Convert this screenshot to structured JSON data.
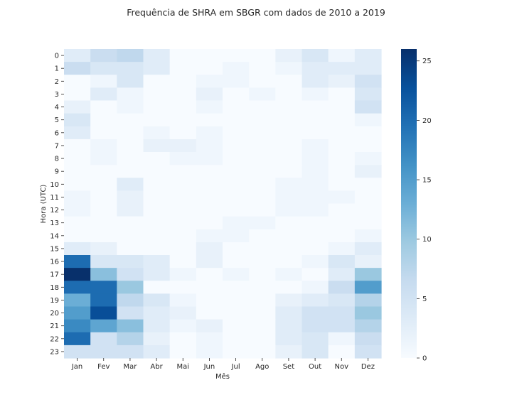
{
  "chart_data": {
    "type": "heatmap",
    "title": "Frequência de SHRA em SBGR com dados de 2010 a 2019",
    "xlabel": "Mês",
    "ylabel": "Hora (UTC)",
    "x_categories": [
      "Jan",
      "Fev",
      "Mar",
      "Abr",
      "Mai",
      "Jun",
      "Jul",
      "Ago",
      "Set",
      "Out",
      "Nov",
      "Dez"
    ],
    "y_categories": [
      "0",
      "1",
      "2",
      "3",
      "4",
      "5",
      "6",
      "7",
      "8",
      "9",
      "10",
      "11",
      "12",
      "13",
      "14",
      "15",
      "16",
      "17",
      "18",
      "19",
      "20",
      "21",
      "22",
      "23"
    ],
    "values": [
      [
        3,
        6,
        7,
        3,
        0,
        0,
        0,
        0,
        2,
        4,
        1,
        3
      ],
      [
        6,
        4,
        4,
        3,
        0,
        0,
        1,
        0,
        1,
        3,
        3,
        3
      ],
      [
        0,
        1,
        4,
        0,
        0,
        1,
        1,
        0,
        0,
        3,
        2,
        5
      ],
      [
        0,
        3,
        1,
        0,
        0,
        2,
        0,
        1,
        0,
        1,
        0,
        4
      ],
      [
        2,
        0,
        1,
        0,
        0,
        1,
        0,
        0,
        0,
        0,
        0,
        5
      ],
      [
        4,
        0,
        0,
        0,
        0,
        0,
        0,
        0,
        0,
        0,
        0,
        1
      ],
      [
        3,
        0,
        0,
        1,
        0,
        1,
        0,
        0,
        0,
        0,
        0,
        0
      ],
      [
        0,
        1,
        0,
        2,
        2,
        1,
        0,
        0,
        0,
        1,
        0,
        0
      ],
      [
        0,
        1,
        0,
        0,
        1,
        1,
        0,
        0,
        0,
        1,
        0,
        1
      ],
      [
        0,
        0,
        0,
        0,
        0,
        0,
        0,
        0,
        0,
        1,
        0,
        2
      ],
      [
        0,
        0,
        3,
        0,
        0,
        0,
        0,
        0,
        1,
        1,
        0,
        0
      ],
      [
        1,
        0,
        2,
        0,
        0,
        0,
        0,
        0,
        1,
        1,
        1,
        0
      ],
      [
        1,
        0,
        2,
        0,
        0,
        0,
        0,
        0,
        1,
        1,
        0,
        0
      ],
      [
        0,
        0,
        0,
        0,
        0,
        0,
        1,
        1,
        0,
        0,
        0,
        0
      ],
      [
        0,
        0,
        0,
        0,
        0,
        1,
        1,
        0,
        0,
        0,
        0,
        1
      ],
      [
        3,
        2,
        0,
        0,
        0,
        2,
        0,
        0,
        0,
        0,
        1,
        3
      ],
      [
        20,
        4,
        4,
        3,
        0,
        2,
        0,
        0,
        0,
        1,
        4,
        2
      ],
      [
        26,
        11,
        5,
        3,
        1,
        0,
        1,
        0,
        1,
        0,
        3,
        10
      ],
      [
        20,
        20,
        10,
        0,
        0,
        0,
        0,
        0,
        0,
        1,
        6,
        15
      ],
      [
        13,
        20,
        7,
        4,
        1,
        0,
        0,
        0,
        2,
        3,
        4,
        8
      ],
      [
        15,
        23,
        5,
        3,
        2,
        0,
        0,
        0,
        3,
        5,
        5,
        10
      ],
      [
        17,
        14,
        11,
        3,
        1,
        2,
        0,
        0,
        3,
        5,
        5,
        8
      ],
      [
        20,
        5,
        8,
        2,
        0,
        1,
        0,
        0,
        3,
        4,
        1,
        6
      ],
      [
        5,
        5,
        5,
        3,
        0,
        1,
        0,
        0,
        2,
        4,
        0,
        5
      ]
    ],
    "colorbar": {
      "min": 0,
      "max": 26,
      "ticks": [
        0,
        5,
        10,
        15,
        20,
        25
      ]
    },
    "colormap": [
      "#f7fbff",
      "#deebf7",
      "#c6dbef",
      "#9ecae1",
      "#6baed6",
      "#4292c6",
      "#2171b5",
      "#08519c",
      "#08306b"
    ]
  }
}
